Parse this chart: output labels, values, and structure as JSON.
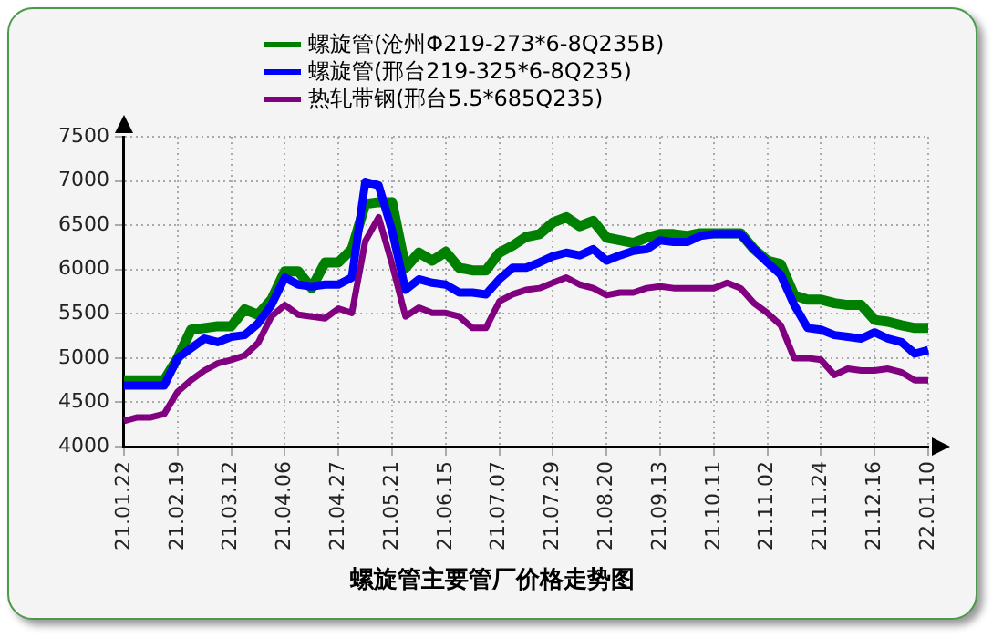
{
  "chart_data": {
    "type": "line",
    "title": "螺旋管主要管厂价格走势图",
    "categories": [
      "21.01.22",
      null,
      null,
      null,
      "21.02.19",
      null,
      null,
      null,
      "21.03.12",
      null,
      null,
      null,
      "21.04.06",
      null,
      null,
      null,
      "21.04.27",
      null,
      null,
      null,
      "21.05.21",
      null,
      null,
      null,
      "21.06.15",
      null,
      null,
      null,
      "21.07.07",
      null,
      null,
      null,
      "21.07.29",
      null,
      null,
      null,
      "21.08.20",
      null,
      null,
      null,
      "21.09.13",
      null,
      null,
      null,
      "21.10.11",
      null,
      null,
      null,
      "21.11.02",
      null,
      null,
      null,
      "21.11.24",
      null,
      null,
      null,
      "21.12.16",
      null,
      null,
      null,
      "22.01.10"
    ],
    "series": [
      {
        "name": "螺旋管(沧州Φ219-273*6-8Q235B)",
        "color": "#008000",
        "values": [
          4750,
          4750,
          4750,
          4750,
          5000,
          5320,
          5340,
          5360,
          5360,
          5550,
          5490,
          5660,
          5980,
          5980,
          5790,
          6080,
          6080,
          6230,
          6740,
          6760,
          6760,
          6020,
          6190,
          6100,
          6200,
          6020,
          5990,
          5990,
          6190,
          6270,
          6370,
          6400,
          6530,
          6590,
          6490,
          6550,
          6360,
          6330,
          6300,
          6360,
          6400,
          6400,
          6380,
          6410,
          6410,
          6410,
          6410,
          6230,
          6100,
          6060,
          5710,
          5660,
          5660,
          5620,
          5600,
          5600,
          5430,
          5410,
          5370,
          5340,
          5340
        ]
      },
      {
        "name": "螺旋管(邢台219-325*6-8Q235)",
        "color": "#0000ff",
        "values": [
          4690,
          4690,
          4690,
          4690,
          5000,
          5110,
          5220,
          5180,
          5240,
          5260,
          5390,
          5600,
          5910,
          5830,
          5810,
          5830,
          5830,
          5910,
          6990,
          6950,
          6440,
          5770,
          5890,
          5850,
          5830,
          5740,
          5740,
          5720,
          5890,
          6020,
          6020,
          6080,
          6150,
          6190,
          6160,
          6230,
          6100,
          6160,
          6210,
          6230,
          6330,
          6310,
          6310,
          6380,
          6400,
          6400,
          6400,
          6230,
          6080,
          5940,
          5600,
          5340,
          5320,
          5260,
          5240,
          5220,
          5290,
          5220,
          5180,
          5050,
          5090
        ]
      },
      {
        "name": "热轧带钢(邢台5.5*685Q235)",
        "color": "#800080",
        "values": [
          4290,
          4330,
          4330,
          4370,
          4620,
          4750,
          4860,
          4940,
          4980,
          5030,
          5170,
          5470,
          5600,
          5490,
          5470,
          5450,
          5560,
          5510,
          6320,
          6590,
          6060,
          5470,
          5570,
          5510,
          5510,
          5470,
          5340,
          5340,
          5640,
          5720,
          5770,
          5790,
          5850,
          5910,
          5830,
          5790,
          5710,
          5740,
          5740,
          5790,
          5810,
          5790,
          5790,
          5790,
          5790,
          5850,
          5790,
          5620,
          5510,
          5370,
          5000,
          5000,
          4980,
          4810,
          4880,
          4860,
          4860,
          4880,
          4840,
          4750,
          4750
        ]
      }
    ],
    "ylim": [
      4000,
      7500
    ],
    "yticks": [
      4000,
      4500,
      5000,
      5500,
      6000,
      6500,
      7000,
      7500
    ],
    "grid": true,
    "legend": "top",
    "marker": "none",
    "line_style": "solid"
  }
}
